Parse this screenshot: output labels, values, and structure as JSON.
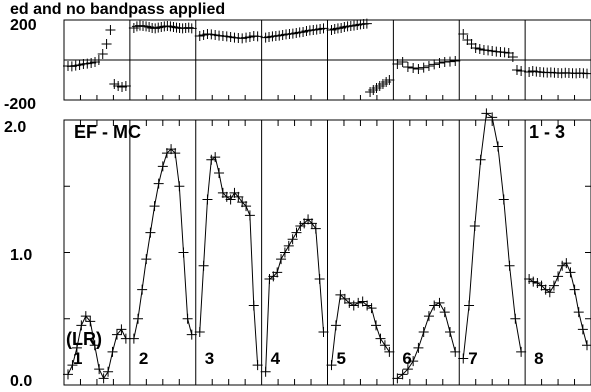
{
  "caption": "ed and no bandpass applied",
  "baseline_label": "EF - MC",
  "pol_label": "(LR)",
  "page_label": "1 - 3",
  "chart_data": {
    "type": "line",
    "phase_panel": {
      "ylim": [
        -200,
        200
      ],
      "tick_labels": [
        "200",
        "-200"
      ],
      "reference_line": 0
    },
    "amp_panel": {
      "ylim": [
        0,
        2.0
      ],
      "tick_labels": [
        "2.0",
        "1.0",
        "0.0"
      ]
    },
    "channels": [
      {
        "label": "1",
        "amp": [
          0.08,
          0.15,
          0.28,
          0.45,
          0.52,
          0.48,
          0.3,
          0.12,
          0.05,
          0.1,
          0.25,
          0.38,
          0.42,
          0.35
        ],
        "phase": [
          -30,
          -32,
          -28,
          -25,
          -20,
          -18,
          -15,
          -10,
          0,
          30,
          80,
          150,
          -120,
          -130,
          -135,
          -130
        ]
      },
      {
        "label": "2",
        "amp": [
          0.35,
          0.5,
          0.72,
          0.95,
          1.15,
          1.35,
          1.52,
          1.65,
          1.75,
          1.78,
          1.75,
          1.5,
          1.0,
          0.5,
          0.38
        ],
        "phase": [
          160,
          168,
          172,
          170,
          168,
          165,
          160,
          158,
          162,
          165,
          168,
          170,
          168,
          165,
          162,
          160,
          158,
          160,
          162,
          158
        ]
      },
      {
        "label": "3",
        "amp": [
          0.4,
          0.9,
          1.4,
          1.7,
          1.72,
          1.6,
          1.45,
          1.42,
          1.4,
          1.45,
          1.42,
          1.38,
          1.35,
          1.28,
          0.6,
          0.15
        ],
        "phase": [
          120,
          125,
          130,
          128,
          125,
          122,
          120,
          118,
          115,
          112,
          110,
          108,
          112,
          115,
          120,
          118
        ]
      },
      {
        "label": "4",
        "amp": [
          0.1,
          0.8,
          0.82,
          0.85,
          0.95,
          1.0,
          1.05,
          1.1,
          1.15,
          1.2,
          1.22,
          1.25,
          1.22,
          1.18,
          0.8,
          0.4
        ],
        "phase": [
          112,
          115,
          118,
          120,
          122,
          125,
          128,
          130,
          132,
          135,
          138,
          140,
          145,
          148,
          150,
          152,
          155,
          158
        ]
      },
      {
        "label": "5",
        "amp": [
          0.15,
          0.45,
          0.68,
          0.65,
          0.62,
          0.6,
          0.62,
          0.63,
          0.6,
          0.58,
          0.45,
          0.35,
          0.3,
          0.25
        ],
        "phase": [
          150,
          155,
          158,
          160,
          165,
          168,
          170,
          172,
          175,
          178,
          180,
          182,
          -160,
          -150,
          -140,
          -130,
          -120,
          -110,
          -100
        ]
      },
      {
        "label": "6",
        "amp": [
          0.05,
          0.08,
          0.12,
          0.18,
          0.28,
          0.4,
          0.52,
          0.6,
          0.62,
          0.55,
          0.4,
          0.25
        ],
        "phase": [
          -20,
          -10,
          -35,
          -40,
          -45,
          -38,
          -30,
          -22,
          -15,
          -10,
          -8,
          -5
        ]
      },
      {
        "label": "7",
        "amp": [
          0.2,
          0.6,
          1.2,
          1.7,
          2.05,
          2.02,
          1.8,
          1.4,
          0.9,
          0.5,
          0.25
        ],
        "phase": [
          130,
          100,
          80,
          60,
          55,
          50,
          48,
          45,
          42,
          40,
          38,
          35,
          15,
          -50,
          -55
        ]
      },
      {
        "label": "8",
        "amp": [
          0.8,
          0.78,
          0.77,
          0.75,
          0.72,
          0.7,
          0.75,
          0.82,
          0.9,
          0.92,
          0.85,
          0.72,
          0.55,
          0.42,
          0.3
        ],
        "phase": [
          -60,
          -55,
          -58,
          -60,
          -62,
          -63,
          -62,
          -64,
          -65,
          -66,
          -64,
          -65,
          -66,
          -67,
          -65,
          -66,
          -68
        ]
      }
    ]
  }
}
